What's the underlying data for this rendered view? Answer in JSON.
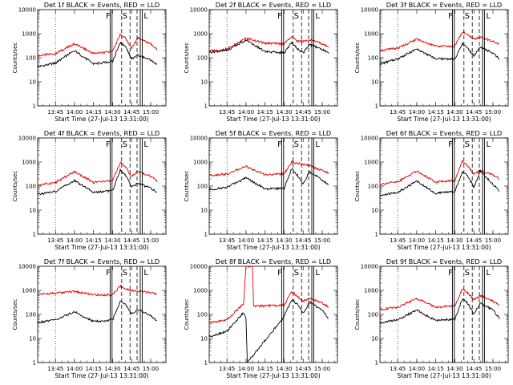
{
  "figure": {
    "xlabel": "Start Time (27-Jul-13 13:31:00)",
    "ylabel": "Counts/sec",
    "colors": {
      "events": "#000000",
      "lld": "#e00000"
    },
    "flags": {
      "F": "F",
      "S": "S",
      "L": "L"
    }
  },
  "chart_data": [
    {
      "type": "line",
      "title": "Det 1f BLACK = Events, RED = LLD",
      "x_ticks": [
        "13:45",
        "14:00",
        "14:15",
        "14:30",
        "14:45",
        "15:00"
      ],
      "y_ticks": [
        "1",
        "10",
        "100",
        "1000",
        "10000"
      ],
      "ylim": [
        1,
        10000
      ],
      "yscale": "log",
      "series": [
        {
          "color": "red",
          "x": [
            "13:31",
            "13:45",
            "14:00",
            "14:15",
            "14:30",
            "14:36",
            "14:40",
            "14:45",
            "14:50",
            "15:00",
            "15:05"
          ],
          "values": [
            120,
            150,
            380,
            150,
            180,
            950,
            650,
            250,
            650,
            380,
            210
          ]
        },
        {
          "color": "black",
          "x": [
            "13:31",
            "13:45",
            "14:00",
            "14:15",
            "14:30",
            "14:36",
            "14:40",
            "14:45",
            "14:50",
            "15:00",
            "15:05"
          ],
          "values": [
            42,
            60,
            200,
            55,
            70,
            420,
            300,
            90,
            130,
            80,
            55
          ]
        }
      ]
    },
    {
      "type": "line",
      "title": "Det 2f BLACK = Events, RED = LLD",
      "x_ticks": [
        "13:45",
        "14:00",
        "14:15",
        "14:30",
        "14:45",
        "15:00"
      ],
      "y_ticks": [
        "1",
        "10",
        "100",
        "1000",
        "10000"
      ],
      "ylim": [
        1,
        10000
      ],
      "yscale": "log",
      "series": [
        {
          "color": "red",
          "x": [
            "13:31",
            "13:45",
            "14:00",
            "14:15",
            "14:30",
            "14:36",
            "14:40",
            "14:45",
            "14:50",
            "15:00",
            "15:05"
          ],
          "values": [
            190,
            230,
            650,
            400,
            380,
            750,
            500,
            480,
            550,
            380,
            280
          ]
        },
        {
          "color": "black",
          "x": [
            "13:31",
            "13:45",
            "14:00",
            "14:15",
            "14:30",
            "14:36",
            "14:40",
            "14:45",
            "14:50",
            "15:00",
            "15:05"
          ],
          "values": [
            170,
            200,
            550,
            180,
            160,
            420,
            250,
            160,
            350,
            220,
            160
          ]
        }
      ]
    },
    {
      "type": "line",
      "title": "Det 3f BLACK = Events, RED = LLD",
      "x_ticks": [
        "13:45",
        "14:00",
        "14:15",
        "14:30",
        "14:45",
        "15:00"
      ],
      "y_ticks": [
        "1",
        "10",
        "100",
        "1000",
        "10000"
      ],
      "ylim": [
        1,
        10000
      ],
      "yscale": "log",
      "series": [
        {
          "color": "red",
          "x": [
            "13:31",
            "13:45",
            "14:00",
            "14:15",
            "14:30",
            "14:36",
            "14:40",
            "14:45",
            "14:50",
            "15:00",
            "15:05"
          ],
          "values": [
            200,
            250,
            600,
            300,
            300,
            1200,
            900,
            600,
            700,
            500,
            350
          ]
        },
        {
          "color": "black",
          "x": [
            "13:31",
            "13:45",
            "14:00",
            "14:15",
            "14:30",
            "14:36",
            "14:40",
            "14:45",
            "14:50",
            "15:00",
            "15:05"
          ],
          "values": [
            55,
            90,
            230,
            90,
            90,
            380,
            250,
            120,
            280,
            150,
            90
          ]
        }
      ]
    },
    {
      "type": "line",
      "title": "Det 4f BLACK = Events, RED = LLD",
      "x_ticks": [
        "13:45",
        "14:00",
        "14:15",
        "14:30",
        "14:45",
        "15:00"
      ],
      "y_ticks": [
        "1",
        "10",
        "100",
        "1000",
        "10000"
      ],
      "ylim": [
        1,
        10000
      ],
      "yscale": "log",
      "series": [
        {
          "color": "red",
          "x": [
            "13:31",
            "13:45",
            "14:00",
            "14:15",
            "14:30",
            "14:36",
            "14:40",
            "14:45",
            "14:50",
            "15:00",
            "15:05"
          ],
          "values": [
            110,
            140,
            400,
            140,
            170,
            1000,
            650,
            250,
            400,
            260,
            160
          ]
        },
        {
          "color": "black",
          "x": [
            "13:31",
            "13:45",
            "14:00",
            "14:15",
            "14:30",
            "14:36",
            "14:40",
            "14:45",
            "14:50",
            "15:00",
            "15:05"
          ],
          "values": [
            45,
            60,
            170,
            55,
            65,
            460,
            300,
            90,
            130,
            80,
            55
          ]
        }
      ]
    },
    {
      "type": "line",
      "title": "Det 5f BLACK = Events, RED = LLD",
      "x_ticks": [
        "13:45",
        "14:00",
        "14:15",
        "14:30",
        "14:45",
        "15:00"
      ],
      "y_ticks": [
        "1",
        "10",
        "100",
        "1000",
        "10000"
      ],
      "ylim": [
        1,
        10000
      ],
      "yscale": "log",
      "series": [
        {
          "color": "red",
          "x": [
            "13:31",
            "13:45",
            "14:00",
            "14:15",
            "14:30",
            "14:36",
            "14:40",
            "14:45",
            "14:50",
            "15:00",
            "15:05"
          ],
          "values": [
            280,
            320,
            650,
            300,
            320,
            1000,
            900,
            800,
            700,
            450,
            350
          ]
        },
        {
          "color": "black",
          "x": [
            "13:31",
            "13:45",
            "14:00",
            "14:15",
            "14:30",
            "14:36",
            "14:40",
            "14:45",
            "14:50",
            "15:00",
            "15:05"
          ],
          "values": [
            70,
            90,
            220,
            75,
            80,
            520,
            300,
            120,
            400,
            180,
            110
          ]
        }
      ]
    },
    {
      "type": "line",
      "title": "Det 6f BLACK = Events, RED = LLD",
      "x_ticks": [
        "13:45",
        "14:00",
        "14:15",
        "14:30",
        "14:45",
        "15:00"
      ],
      "y_ticks": [
        "1",
        "10",
        "100",
        "1000",
        "10000"
      ],
      "ylim": [
        1,
        10000
      ],
      "yscale": "log",
      "series": [
        {
          "color": "red",
          "x": [
            "13:31",
            "13:45",
            "14:00",
            "14:15",
            "14:30",
            "14:36",
            "14:40",
            "14:45",
            "14:50",
            "15:00",
            "15:05"
          ],
          "values": [
            120,
            150,
            420,
            150,
            170,
            1100,
            700,
            300,
            450,
            300,
            200
          ]
        },
        {
          "color": "black",
          "x": [
            "13:31",
            "13:45",
            "14:00",
            "14:15",
            "14:30",
            "14:36",
            "14:40",
            "14:45",
            "14:50",
            "15:00",
            "15:05"
          ],
          "values": [
            40,
            55,
            160,
            50,
            60,
            400,
            280,
            90,
            420,
            120,
            60
          ]
        }
      ]
    },
    {
      "type": "line",
      "title": "Det 7f BLACK = Events, RED = LLD",
      "x_ticks": [
        "13:45",
        "14:00",
        "14:15",
        "14:30",
        "14:45",
        "15:00"
      ],
      "y_ticks": [
        "1",
        "10",
        "100",
        "1000",
        "10000"
      ],
      "ylim": [
        1,
        10000
      ],
      "yscale": "log",
      "series": [
        {
          "color": "red",
          "x": [
            "13:31",
            "13:45",
            "14:00",
            "14:15",
            "14:30",
            "14:36",
            "14:40",
            "14:45",
            "14:50",
            "15:00",
            "15:05"
          ],
          "values": [
            700,
            750,
            900,
            650,
            650,
            1500,
            1200,
            1000,
            950,
            800,
            700
          ]
        },
        {
          "color": "black",
          "x": [
            "13:31",
            "13:45",
            "14:00",
            "14:15",
            "14:30",
            "14:36",
            "14:40",
            "14:45",
            "14:50",
            "15:00",
            "15:05"
          ],
          "values": [
            45,
            60,
            130,
            50,
            60,
            350,
            250,
            110,
            160,
            90,
            55
          ]
        }
      ]
    },
    {
      "type": "line",
      "title": "Det 8f BLACK = Events, RED = LLD",
      "x_ticks": [
        "13:45",
        "14:00",
        "14:15",
        "14:30",
        "14:45",
        "15:00"
      ],
      "y_ticks": [
        "1",
        "10",
        "100",
        "1000",
        "10000"
      ],
      "ylim": [
        1,
        10000
      ],
      "yscale": "log",
      "series": [
        {
          "color": "red",
          "x": [
            "13:31",
            "13:45",
            "13:58",
            "14:00",
            "14:01",
            "14:05",
            "14:06",
            "14:30",
            "14:36",
            "14:40",
            "14:45",
            "14:50",
            "15:00",
            "15:05"
          ],
          "values": [
            45,
            60,
            280,
            10000,
            10000,
            10000,
            220,
            240,
            900,
            600,
            350,
            500,
            300,
            200
          ]
        },
        {
          "color": "black",
          "x": [
            "13:31",
            "13:45",
            "13:58",
            "14:00",
            "14:01",
            "14:30",
            "14:36",
            "14:40",
            "14:45",
            "14:50",
            "15:00",
            "15:05"
          ],
          "values": [
            12,
            20,
            120,
            70,
            1,
            80,
            420,
            280,
            110,
            320,
            150,
            70
          ]
        }
      ]
    },
    {
      "type": "line",
      "title": "Det 9f BLACK = Events, RED = LLD",
      "x_ticks": [
        "13:45",
        "14:00",
        "14:15",
        "14:30",
        "14:45",
        "15:00"
      ],
      "y_ticks": [
        "1",
        "10",
        "100",
        "1000",
        "10000"
      ],
      "ylim": [
        1,
        10000
      ],
      "yscale": "log",
      "series": [
        {
          "color": "red",
          "x": [
            "13:31",
            "13:45",
            "14:00",
            "14:15",
            "14:30",
            "14:36",
            "14:40",
            "14:45",
            "14:50",
            "15:00",
            "15:05"
          ],
          "values": [
            160,
            200,
            450,
            200,
            230,
            1200,
            800,
            400,
            600,
            350,
            250
          ]
        },
        {
          "color": "black",
          "x": [
            "13:31",
            "13:45",
            "14:00",
            "14:15",
            "14:30",
            "14:36",
            "14:40",
            "14:45",
            "14:50",
            "15:00",
            "15:05"
          ],
          "values": [
            45,
            60,
            150,
            55,
            65,
            430,
            300,
            100,
            300,
            150,
            70
          ]
        }
      ]
    }
  ]
}
